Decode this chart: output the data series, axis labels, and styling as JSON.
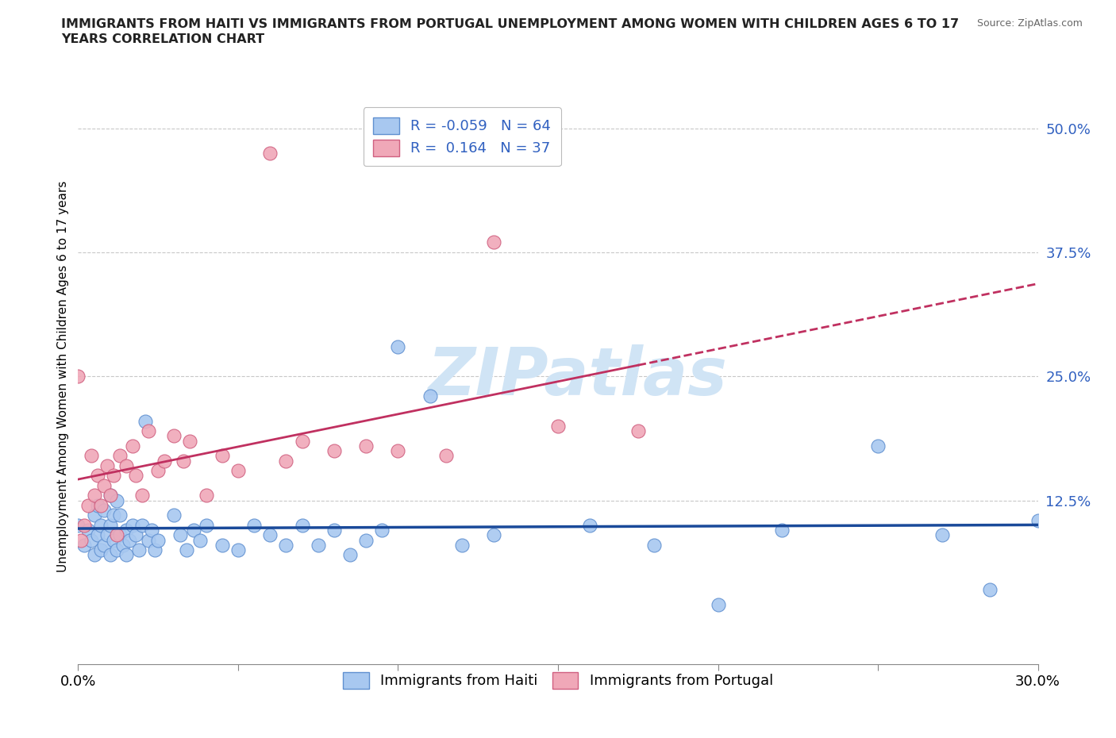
{
  "title_line1": "IMMIGRANTS FROM HAITI VS IMMIGRANTS FROM PORTUGAL UNEMPLOYMENT AMONG WOMEN WITH CHILDREN AGES 6 TO 17",
  "title_line2": "YEARS CORRELATION CHART",
  "source": "Source: ZipAtlas.com",
  "ylabel": "Unemployment Among Women with Children Ages 6 to 17 years",
  "xlim": [
    0.0,
    0.3
  ],
  "ylim": [
    -0.04,
    0.54
  ],
  "ytick_vals": [
    0.0,
    0.125,
    0.25,
    0.375,
    0.5
  ],
  "ytick_labels": [
    "",
    "12.5%",
    "25.0%",
    "37.5%",
    "50.0%"
  ],
  "xtick_vals": [
    0.0,
    0.05,
    0.1,
    0.15,
    0.2,
    0.25,
    0.3
  ],
  "xtick_labels": [
    "0.0%",
    "",
    "",
    "",
    "",
    "",
    "30.0%"
  ],
  "grid_color": "#c8c8c8",
  "background_color": "#ffffff",
  "haiti_color": "#a8c8f0",
  "haiti_edge_color": "#6090d0",
  "portugal_color": "#f0a8b8",
  "portugal_edge_color": "#d06080",
  "haiti_R": -0.059,
  "haiti_N": 64,
  "portugal_R": 0.164,
  "portugal_N": 37,
  "haiti_line_color": "#1a4a9a",
  "portugal_line_color": "#c03060",
  "watermark_color": "#d0e4f5",
  "legend_text_color": "#3060c0",
  "haiti_x": [
    0.0,
    0.002,
    0.003,
    0.004,
    0.005,
    0.005,
    0.006,
    0.006,
    0.007,
    0.007,
    0.008,
    0.008,
    0.009,
    0.01,
    0.01,
    0.01,
    0.011,
    0.011,
    0.012,
    0.012,
    0.013,
    0.013,
    0.014,
    0.015,
    0.015,
    0.016,
    0.017,
    0.018,
    0.019,
    0.02,
    0.021,
    0.022,
    0.023,
    0.024,
    0.025,
    0.03,
    0.032,
    0.034,
    0.036,
    0.038,
    0.04,
    0.045,
    0.05,
    0.055,
    0.06,
    0.065,
    0.07,
    0.075,
    0.08,
    0.085,
    0.09,
    0.095,
    0.1,
    0.11,
    0.12,
    0.13,
    0.16,
    0.18,
    0.2,
    0.22,
    0.25,
    0.27,
    0.285,
    0.3
  ],
  "haiti_y": [
    0.1,
    0.08,
    0.095,
    0.085,
    0.07,
    0.11,
    0.09,
    0.12,
    0.075,
    0.1,
    0.08,
    0.115,
    0.09,
    0.07,
    0.1,
    0.13,
    0.085,
    0.11,
    0.075,
    0.125,
    0.09,
    0.11,
    0.08,
    0.07,
    0.095,
    0.085,
    0.1,
    0.09,
    0.075,
    0.1,
    0.205,
    0.085,
    0.095,
    0.075,
    0.085,
    0.11,
    0.09,
    0.075,
    0.095,
    0.085,
    0.1,
    0.08,
    0.075,
    0.1,
    0.09,
    0.08,
    0.1,
    0.08,
    0.095,
    0.07,
    0.085,
    0.095,
    0.28,
    0.23,
    0.08,
    0.09,
    0.1,
    0.08,
    0.02,
    0.095,
    0.18,
    0.09,
    0.035,
    0.105
  ],
  "portugal_x": [
    0.0,
    0.001,
    0.002,
    0.003,
    0.004,
    0.005,
    0.006,
    0.007,
    0.008,
    0.009,
    0.01,
    0.011,
    0.012,
    0.013,
    0.015,
    0.017,
    0.018,
    0.02,
    0.022,
    0.025,
    0.027,
    0.03,
    0.033,
    0.035,
    0.04,
    0.045,
    0.05,
    0.06,
    0.065,
    0.07,
    0.08,
    0.09,
    0.1,
    0.115,
    0.13,
    0.15,
    0.175
  ],
  "portugal_y": [
    0.25,
    0.085,
    0.1,
    0.12,
    0.17,
    0.13,
    0.15,
    0.12,
    0.14,
    0.16,
    0.13,
    0.15,
    0.09,
    0.17,
    0.16,
    0.18,
    0.15,
    0.13,
    0.195,
    0.155,
    0.165,
    0.19,
    0.165,
    0.185,
    0.13,
    0.17,
    0.155,
    0.475,
    0.165,
    0.185,
    0.175,
    0.18,
    0.175,
    0.17,
    0.385,
    0.2,
    0.195
  ]
}
